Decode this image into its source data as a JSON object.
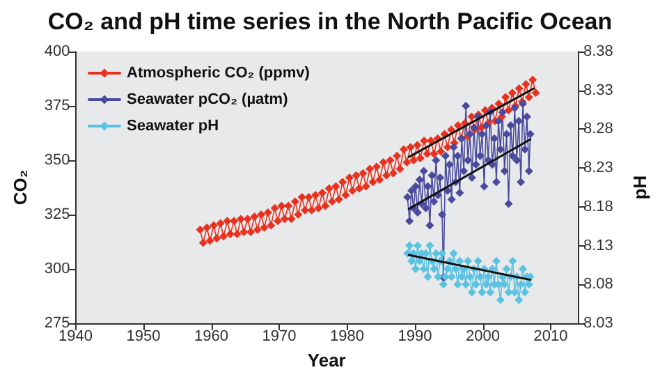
{
  "chart_data": {
    "type": "line",
    "title": "CO₂ and pH time series in the North Pacific Ocean",
    "xlabel": "Year",
    "ylabel": "CO₂",
    "y2label": "pH",
    "xlim": [
      1940,
      2014
    ],
    "xticks": [
      1940,
      1950,
      1960,
      1970,
      1980,
      1990,
      2000,
      2010
    ],
    "ylim": [
      275,
      400
    ],
    "yticks": [
      275,
      300,
      325,
      350,
      375,
      400
    ],
    "y2lim": [
      8.03,
      8.38
    ],
    "y2ticks": [
      8.03,
      8.08,
      8.13,
      8.18,
      8.23,
      8.28,
      8.33,
      8.38
    ],
    "grid": false,
    "legend": "top left",
    "series": [
      {
        "name": "Atmospheric CO₂ (ppmv)",
        "color": "#e8321f",
        "marker": "diamond",
        "x": [
          1958.35,
          1958.8,
          1959.35,
          1959.8,
          1960.35,
          1960.8,
          1961.35,
          1961.8,
          1962.35,
          1962.8,
          1963.35,
          1963.8,
          1964.35,
          1964.8,
          1965.35,
          1965.8,
          1966.35,
          1966.8,
          1967.35,
          1967.8,
          1968.35,
          1968.8,
          1969.35,
          1969.8,
          1970.35,
          1970.8,
          1971.35,
          1971.8,
          1972.35,
          1972.8,
          1973.35,
          1973.8,
          1974.35,
          1974.8,
          1975.35,
          1975.8,
          1976.35,
          1976.8,
          1977.35,
          1977.8,
          1978.35,
          1978.8,
          1979.35,
          1979.8,
          1980.35,
          1980.8,
          1981.35,
          1981.8,
          1982.35,
          1982.8,
          1983.35,
          1983.8,
          1984.35,
          1984.8,
          1985.35,
          1985.8,
          1986.35,
          1986.8,
          1987.35,
          1987.8,
          1988.35,
          1988.8,
          1989.35,
          1989.8,
          1990.35,
          1990.8,
          1991.35,
          1991.8,
          1992.35,
          1992.8,
          1993.35,
          1993.8,
          1994.35,
          1994.8,
          1995.35,
          1995.8,
          1996.35,
          1996.8,
          1997.35,
          1997.8,
          1998.35,
          1998.8,
          1999.35,
          1999.8,
          2000.35,
          2000.8,
          2001.35,
          2001.8,
          2002.35,
          2002.8,
          2003.35,
          2003.8,
          2004.35,
          2004.8,
          2005.35,
          2005.8,
          2006.35,
          2006.8,
          2007.35,
          2007.8
        ],
        "values": [
          318,
          312,
          319,
          313,
          320,
          314,
          321,
          315,
          322,
          316,
          322,
          316,
          323,
          317,
          323,
          317,
          324,
          318,
          325,
          319,
          326,
          320,
          328,
          322,
          329,
          323,
          329,
          323,
          331,
          325,
          333,
          327,
          333,
          327,
          334,
          328,
          335,
          329,
          337,
          331,
          338,
          332,
          340,
          334,
          342,
          336,
          343,
          337,
          344,
          338,
          346,
          340,
          347,
          341,
          349,
          343,
          350,
          344,
          352,
          346,
          355,
          349,
          356,
          350,
          357,
          351,
          359,
          353,
          359,
          353,
          360,
          354,
          362,
          356,
          364,
          358,
          366,
          360,
          367,
          361,
          370,
          364,
          371,
          365,
          373,
          367,
          374,
          368,
          376,
          370,
          379,
          373,
          381,
          375,
          383,
          377,
          385,
          379,
          387,
          381
        ]
      },
      {
        "name": "Seawater pCO₂ (µatm)",
        "color": "#4b4b9e",
        "marker": "diamond",
        "x": [
          1988.9,
          1989.2,
          1989.5,
          1989.8,
          1990.1,
          1990.4,
          1990.7,
          1991.0,
          1991.3,
          1991.6,
          1991.9,
          1992.2,
          1992.5,
          1992.8,
          1993.1,
          1993.4,
          1993.7,
          1994.0,
          1994.2,
          1994.5,
          1994.8,
          1995.1,
          1995.4,
          1995.7,
          1996.0,
          1996.3,
          1996.6,
          1996.9,
          1997.2,
          1997.5,
          1997.8,
          1998.1,
          1998.4,
          1998.7,
          1999.0,
          1999.3,
          1999.6,
          1999.9,
          2000.2,
          2000.5,
          2000.8,
          2001.1,
          2001.4,
          2001.7,
          2002.0,
          2002.3,
          2002.6,
          2002.9,
          2003.2,
          2003.5,
          2003.8,
          2004.1,
          2004.4,
          2004.7,
          2005.0,
          2005.3,
          2005.6,
          2005.9,
          2006.2,
          2006.5,
          2006.8,
          2007.0
        ],
        "values": [
          333,
          322,
          336,
          328,
          338,
          326,
          341,
          330,
          345,
          328,
          338,
          320,
          343,
          331,
          350,
          334,
          342,
          325,
          296,
          352,
          336,
          348,
          332,
          356,
          340,
          352,
          335,
          360,
          345,
          375,
          350,
          362,
          342,
          365,
          348,
          370,
          352,
          362,
          338,
          366,
          350,
          372,
          348,
          360,
          340,
          368,
          355,
          372,
          345,
          362,
          330,
          366,
          352,
          374,
          350,
          368,
          340,
          376,
          355,
          370,
          345,
          362
        ]
      },
      {
        "name": "Seawater pH",
        "color": "#5bc3e2",
        "marker": "diamond",
        "axis": "y2",
        "x": [
          1988.9,
          1989.2,
          1989.5,
          1989.8,
          1990.1,
          1990.4,
          1990.7,
          1991.0,
          1991.3,
          1991.6,
          1991.9,
          1992.2,
          1992.5,
          1992.8,
          1993.1,
          1993.4,
          1993.7,
          1994.0,
          1994.2,
          1994.5,
          1994.8,
          1995.1,
          1995.4,
          1995.7,
          1996.0,
          1996.3,
          1996.6,
          1996.9,
          1997.2,
          1997.5,
          1997.8,
          1998.1,
          1998.4,
          1998.7,
          1999.0,
          1999.3,
          1999.6,
          1999.9,
          2000.2,
          2000.5,
          2000.8,
          2001.1,
          2001.4,
          2001.7,
          2002.0,
          2002.3,
          2002.6,
          2002.9,
          2003.2,
          2003.5,
          2003.8,
          2004.1,
          2004.4,
          2004.7,
          2005.0,
          2005.3,
          2005.6,
          2005.9,
          2006.2,
          2006.5,
          2006.8,
          2007.0
        ],
        "values": [
          8.12,
          8.13,
          8.11,
          8.12,
          8.1,
          8.13,
          8.11,
          8.12,
          8.1,
          8.12,
          8.09,
          8.13,
          8.11,
          8.1,
          8.12,
          8.09,
          8.11,
          8.12,
          8.08,
          8.09,
          8.1,
          8.11,
          8.09,
          8.12,
          8.1,
          8.08,
          8.11,
          8.09,
          8.1,
          8.08,
          8.11,
          8.09,
          8.07,
          8.1,
          8.08,
          8.11,
          8.09,
          8.07,
          8.1,
          8.08,
          8.09,
          8.07,
          8.1,
          8.08,
          8.11,
          8.08,
          8.06,
          8.09,
          8.08,
          8.1,
          8.07,
          8.09,
          8.11,
          8.07,
          8.09,
          8.06,
          8.08,
          8.1,
          8.07,
          8.09,
          8.08,
          8.09
        ]
      },
      {
        "color": "#111111",
        "marker": "none",
        "x": [
          1989.1,
          2007.5
        ],
        "values": [
          351.5,
          383
        ]
      },
      {
        "color": "#111111",
        "marker": "none",
        "x": [
          1989.1,
          2007
        ],
        "values": [
          327.6,
          359.6
        ]
      },
      {
        "color": "#111111",
        "marker": "none",
        "axis": "y2",
        "x": [
          1989.1,
          2007
        ],
        "values": [
          8.118,
          8.086
        ]
      }
    ]
  }
}
